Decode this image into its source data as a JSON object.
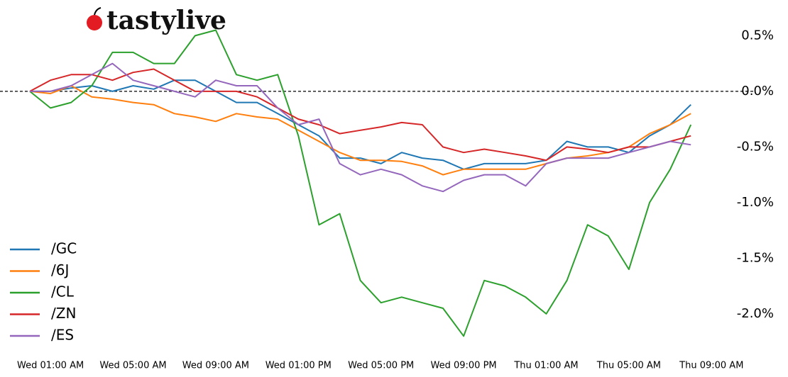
{
  "logo": "tastylive",
  "chart_data": {
    "type": "line",
    "x": [
      "Wed 12:00 AM",
      "Wed 01:00 AM",
      "Wed 02:00 AM",
      "Wed 03:00 AM",
      "Wed 04:00 AM",
      "Wed 05:00 AM",
      "Wed 06:00 AM",
      "Wed 07:00 AM",
      "Wed 08:00 AM",
      "Wed 09:00 AM",
      "Wed 10:00 AM",
      "Wed 11:00 AM",
      "Wed 12:00 PM",
      "Wed 01:00 PM",
      "Wed 02:00 PM",
      "Wed 03:00 PM",
      "Wed 04:00 PM",
      "Wed 05:00 PM",
      "Wed 06:00 PM",
      "Wed 07:00 PM",
      "Wed 08:00 PM",
      "Wed 09:00 PM",
      "Wed 10:00 PM",
      "Wed 11:00 PM",
      "Thu 12:00 AM",
      "Thu 01:00 AM",
      "Thu 02:00 AM",
      "Thu 03:00 AM",
      "Thu 04:00 AM",
      "Thu 05:00 AM",
      "Thu 06:00 AM",
      "Thu 07:00 AM",
      "Thu 08:00 AM"
    ],
    "series": [
      {
        "name": "/GC",
        "color": "#1f77b4",
        "values": [
          0,
          0,
          0.03,
          0.05,
          0,
          0.05,
          0.02,
          0.1,
          0.1,
          0,
          -0.1,
          -0.1,
          -0.2,
          -0.3,
          -0.4,
          -0.6,
          -0.6,
          -0.65,
          -0.55,
          -0.6,
          -0.62,
          -0.7,
          -0.65,
          -0.65,
          -0.65,
          -0.62,
          -0.45,
          -0.5,
          -0.5,
          -0.55,
          -0.4,
          -0.3,
          -0.12
        ]
      },
      {
        "name": "/6J",
        "color": "#ff7f0e",
        "values": [
          0,
          -0.02,
          0.05,
          -0.05,
          -0.07,
          -0.1,
          -0.12,
          -0.2,
          -0.23,
          -0.27,
          -0.2,
          -0.23,
          -0.25,
          -0.35,
          -0.45,
          -0.55,
          -0.62,
          -0.62,
          -0.63,
          -0.67,
          -0.75,
          -0.7,
          -0.7,
          -0.7,
          -0.7,
          -0.65,
          -0.6,
          -0.58,
          -0.55,
          -0.5,
          -0.38,
          -0.3,
          -0.2
        ]
      },
      {
        "name": "/CL",
        "color": "#2ca02c",
        "values": [
          0,
          -0.15,
          -0.1,
          0.05,
          0.35,
          0.35,
          0.25,
          0.25,
          0.5,
          0.55,
          0.15,
          0.1,
          0.15,
          -0.4,
          -1.2,
          -1.1,
          -1.7,
          -1.9,
          -1.85,
          -1.9,
          -1.95,
          -2.2,
          -1.7,
          -1.75,
          -1.85,
          -2.0,
          -1.7,
          -1.2,
          -1.3,
          -1.6,
          -1.0,
          -0.7,
          -0.3
        ]
      },
      {
        "name": "/ZN",
        "color": "#d62728",
        "values": [
          0,
          0.1,
          0.15,
          0.15,
          0.1,
          0.17,
          0.2,
          0.1,
          0,
          0,
          0,
          -0.05,
          -0.15,
          -0.25,
          -0.3,
          -0.38,
          -0.35,
          -0.32,
          -0.28,
          -0.3,
          -0.5,
          -0.55,
          -0.52,
          -0.55,
          -0.58,
          -0.62,
          -0.5,
          -0.52,
          -0.55,
          -0.5,
          -0.5,
          -0.45,
          -0.4
        ]
      },
      {
        "name": "/ES",
        "color": "#9467bd",
        "values": [
          0,
          0,
          0.05,
          0.15,
          0.25,
          0.1,
          0.05,
          0,
          -0.05,
          0.1,
          0.05,
          0.05,
          -0.15,
          -0.3,
          -0.25,
          -0.65,
          -0.75,
          -0.7,
          -0.75,
          -0.85,
          -0.9,
          -0.8,
          -0.75,
          -0.75,
          -0.85,
          -0.65,
          -0.6,
          -0.6,
          -0.6,
          -0.55,
          -0.5,
          -0.45,
          -0.48
        ]
      }
    ],
    "xticks": [
      "Wed 01:00 AM",
      "Wed 05:00 AM",
      "Wed 09:00 AM",
      "Wed 01:00 PM",
      "Wed 05:00 PM",
      "Wed 09:00 PM",
      "Thu 01:00 AM",
      "Thu 05:00 AM",
      "Thu 09:00 AM"
    ],
    "ylim": [
      -2.3,
      0.77
    ],
    "yticks": [
      {
        "value": 0.5,
        "label": "0.5%"
      },
      {
        "value": 0,
        "label": "0.0%"
      },
      {
        "value": -0.5,
        "label": "-0.5%"
      },
      {
        "value": -1,
        "label": "-1.0%"
      },
      {
        "value": -1.5,
        "label": "-1.5%"
      },
      {
        "value": -2,
        "label": "-2.0%"
      }
    ],
    "zero_line": true,
    "legend": "lower left"
  }
}
